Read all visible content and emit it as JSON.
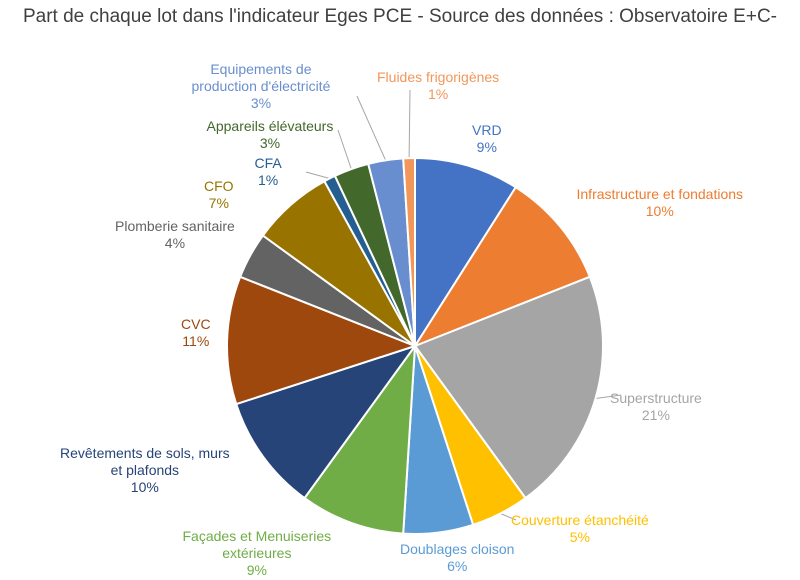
{
  "chart_data": {
    "type": "pie",
    "title": "Part de chaque lot dans l'indicateur Eges PCE - Source des données : Observatoire E+C-",
    "slices": [
      {
        "label": "VRD",
        "value": 9,
        "value_label": "9%",
        "color": "#4472c4"
      },
      {
        "label": "Infrastructure et fondations",
        "value": 10,
        "value_label": "10%",
        "color": "#ed7d31"
      },
      {
        "label": "Superstructure",
        "value": 21,
        "value_label": "21%",
        "color": "#a5a5a5"
      },
      {
        "label": "Couverture étanchéité",
        "value": 5,
        "value_label": "5%",
        "color": "#ffc000"
      },
      {
        "label": "Doublages cloison",
        "value": 6,
        "value_label": "6%",
        "color": "#5b9bd5"
      },
      {
        "label": "Façades et Menuiseries extérieures",
        "value": 9,
        "value_label": "9%",
        "color": "#70ad47"
      },
      {
        "label": "Revêtements de sols, murs et plafonds",
        "value": 10,
        "value_label": "10%",
        "color": "#264478"
      },
      {
        "label": "CVC",
        "value": 11,
        "value_label": "11%",
        "color": "#9e480e"
      },
      {
        "label": "Plomberie sanitaire",
        "value": 4,
        "value_label": "4%",
        "color": "#636363"
      },
      {
        "label": "CFO",
        "value": 7,
        "value_label": "7%",
        "color": "#997300"
      },
      {
        "label": "CFA",
        "value": 1,
        "value_label": "1%",
        "color": "#255e91"
      },
      {
        "label": "Appareils élévateurs",
        "value": 3,
        "value_label": "3%",
        "color": "#43682b"
      },
      {
        "label": "Equipements de production d'électricité",
        "value": 3,
        "value_label": "3%",
        "color": "#698ed0"
      },
      {
        "label": "Fluides frigorigènes",
        "value": 1,
        "value_label": "1%",
        "color": "#f1975a"
      }
    ]
  }
}
